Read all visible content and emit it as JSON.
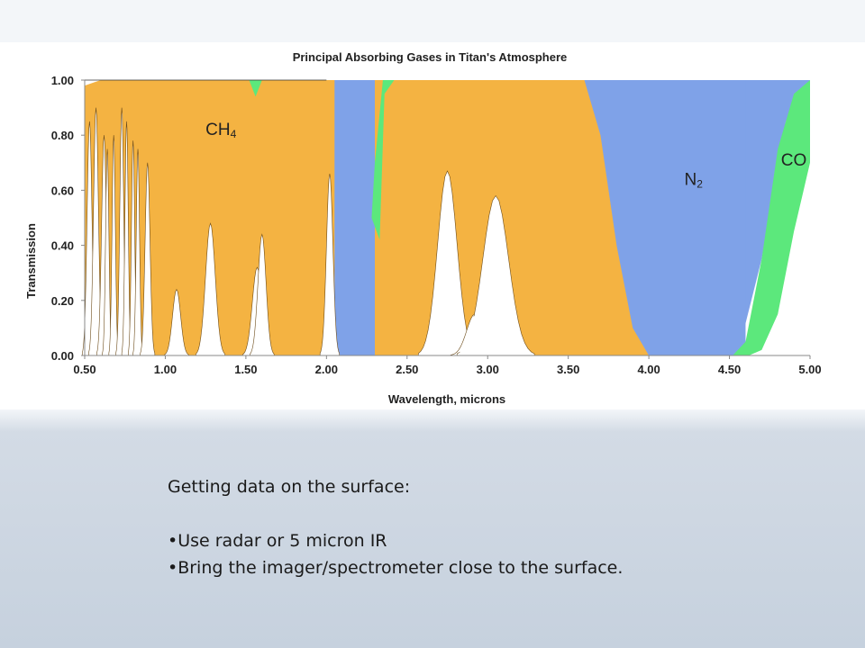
{
  "slide": {
    "heading": "Getting data on the surface:",
    "bullets": [
      "•Use radar or 5 micron IR",
      "•Bring the imager/spectrometer close to the surface."
    ]
  },
  "chart_data": {
    "type": "area",
    "title": "Principal Absorbing Gases in Titan's Atmosphere",
    "xlabel": "Wavelength, microns",
    "ylabel": "Transmission",
    "xlim": [
      0.5,
      5.0
    ],
    "ylim": [
      0.0,
      1.0
    ],
    "x_ticks": [
      "0.50",
      "1.00",
      "1.50",
      "2.00",
      "2.50",
      "3.00",
      "3.50",
      "4.00",
      "4.50",
      "5.00"
    ],
    "y_ticks": [
      "0.00",
      "0.20",
      "0.40",
      "0.60",
      "0.80",
      "1.00"
    ],
    "grid": false,
    "legend": "none",
    "colors": {
      "CH4": "#f4b342",
      "N2": "#7fa2e8",
      "CO": "#5ce87c",
      "atmosphere_transmission": "#ffffff"
    },
    "series": [
      {
        "name": "CH4",
        "label_main": "CH",
        "label_sub": "4",
        "label_pos": [
          1.25,
          0.8
        ],
        "upper_limit": [
          [
            0.5,
            0.98
          ],
          [
            0.55,
            0.99
          ],
          [
            0.6,
            1.0
          ],
          [
            2.05,
            1.0
          ],
          [
            2.05,
            0.0
          ],
          [
            2.3,
            0.0
          ],
          [
            2.3,
            1.0
          ],
          [
            3.6,
            1.0
          ],
          [
            3.7,
            0.8
          ],
          [
            3.8,
            0.4
          ],
          [
            3.9,
            0.1
          ],
          [
            4.0,
            0.0
          ]
        ],
        "transmission_windows": [
          {
            "center": 0.53,
            "peak": 0.85,
            "width": 0.015
          },
          {
            "center": 0.57,
            "peak": 0.9,
            "width": 0.015
          },
          {
            "center": 0.62,
            "peak": 0.8,
            "width": 0.015
          },
          {
            "center": 0.64,
            "peak": 0.75,
            "width": 0.01
          },
          {
            "center": 0.68,
            "peak": 0.8,
            "width": 0.01
          },
          {
            "center": 0.73,
            "peak": 0.9,
            "width": 0.012
          },
          {
            "center": 0.76,
            "peak": 0.85,
            "width": 0.01
          },
          {
            "center": 0.8,
            "peak": 0.78,
            "width": 0.01
          },
          {
            "center": 0.83,
            "peak": 0.75,
            "width": 0.01
          },
          {
            "center": 0.89,
            "peak": 0.7,
            "width": 0.015
          },
          {
            "center": 1.07,
            "peak": 0.24,
            "width": 0.025
          },
          {
            "center": 1.28,
            "peak": 0.48,
            "width": 0.03
          },
          {
            "center": 1.57,
            "peak": 0.32,
            "width": 0.03
          },
          {
            "center": 1.6,
            "peak": 0.44,
            "width": 0.025
          },
          {
            "center": 2.02,
            "peak": 0.66,
            "width": 0.02
          },
          {
            "center": 2.11,
            "peak": 0.0,
            "width": 0.05
          },
          {
            "center": 2.75,
            "peak": 0.67,
            "width": 0.06
          },
          {
            "center": 2.92,
            "peak": 0.15,
            "width": 0.05
          },
          {
            "center": 3.05,
            "peak": 0.58,
            "width": 0.08
          }
        ]
      },
      {
        "name": "N2",
        "label_main": "N",
        "label_sub": "2",
        "label_pos": [
          4.22,
          0.62
        ],
        "points": [
          [
            2.0,
            1.0
          ],
          [
            2.08,
            0.6
          ],
          [
            2.12,
            0.15
          ],
          [
            2.18,
            0.02
          ],
          [
            2.3,
            0.05
          ],
          [
            2.35,
            0.5
          ],
          [
            2.4,
            1.0
          ],
          [
            3.6,
            1.0
          ],
          [
            3.75,
            0.7
          ],
          [
            3.9,
            0.2
          ],
          [
            4.05,
            0.0
          ],
          [
            4.55,
            0.0
          ],
          [
            4.7,
            0.35
          ],
          [
            4.85,
            0.85
          ],
          [
            5.0,
            1.0
          ]
        ]
      },
      {
        "name": "CO",
        "label_main": "CO",
        "label_sub": "",
        "label_pos": [
          4.82,
          0.69
        ],
        "points": [
          [
            4.52,
            0.0
          ],
          [
            4.6,
            0.05
          ],
          [
            4.7,
            0.35
          ],
          [
            4.8,
            0.75
          ],
          [
            4.9,
            0.95
          ],
          [
            5.0,
            1.0
          ],
          [
            5.0,
            0.7
          ],
          [
            4.9,
            0.45
          ],
          [
            4.8,
            0.15
          ],
          [
            4.7,
            0.02
          ],
          [
            4.62,
            0.0
          ]
        ]
      },
      {
        "name": "green_band_2.35",
        "points": [
          [
            2.28,
            0.5
          ],
          [
            2.33,
            0.42
          ],
          [
            2.36,
            0.95
          ],
          [
            2.42,
            1.0
          ],
          [
            2.35,
            1.0
          ],
          [
            2.3,
            0.7
          ]
        ]
      },
      {
        "name": "green_notch_1.56",
        "points": [
          [
            1.52,
            1.0
          ],
          [
            1.56,
            0.94
          ],
          [
            1.6,
            1.0
          ]
        ]
      }
    ]
  }
}
